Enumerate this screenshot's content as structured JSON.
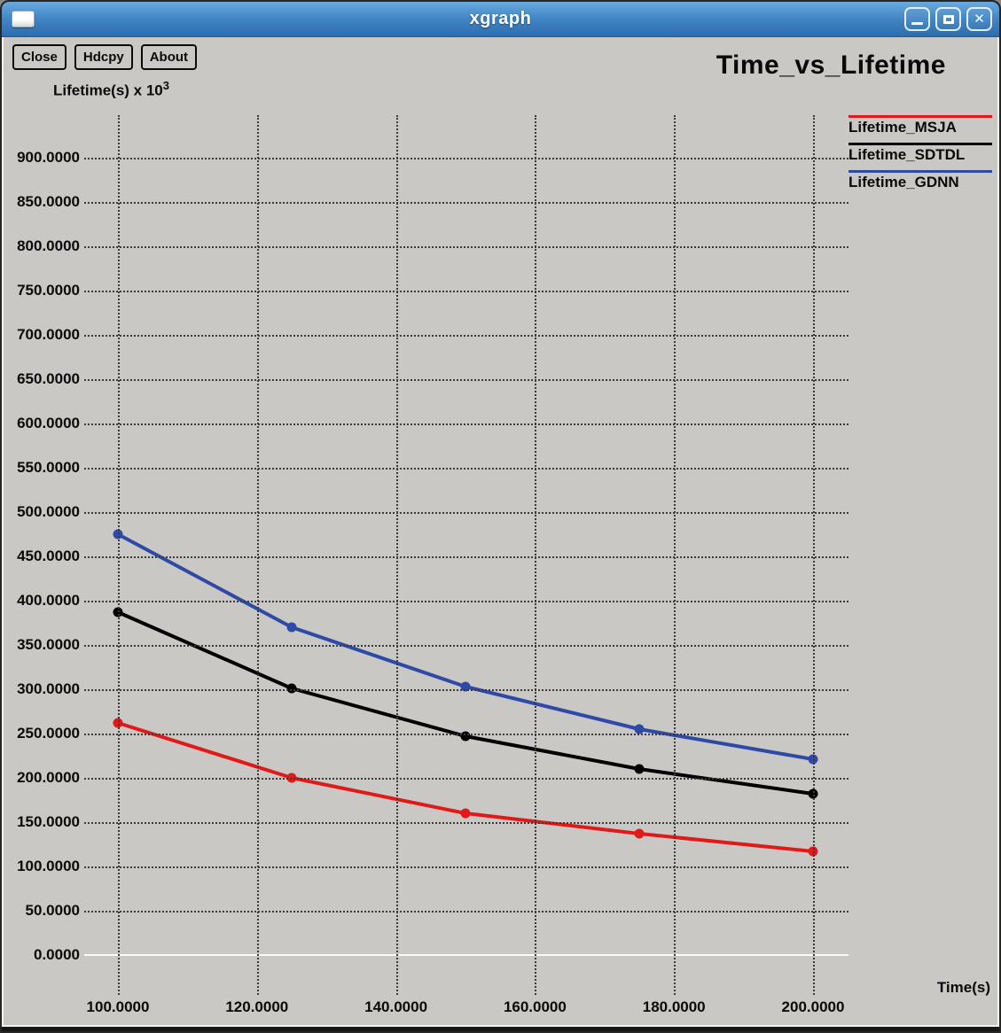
{
  "window": {
    "title": "xgraph",
    "icons": {
      "minimize": "minimize-icon",
      "maximize": "maximize-icon",
      "close": "✕"
    }
  },
  "toolbar": {
    "buttons": [
      "Close",
      "Hdcpy",
      "About"
    ]
  },
  "chart_data": {
    "type": "line",
    "title": "Time_vs_Lifetime",
    "xlabel": "Time(s)",
    "ylabel_prefix": "Lifetime(s) x 10",
    "ylabel_exponent": "3",
    "x": [
      100,
      125,
      150,
      175,
      200
    ],
    "series": [
      {
        "name": "Lifetime_MSJA",
        "color": "#e11919",
        "values": [
          262,
          200,
          160,
          137,
          117
        ]
      },
      {
        "name": "Lifetime_SDTDL",
        "color": "#000000",
        "values": [
          387,
          301,
          247,
          210,
          182
        ]
      },
      {
        "name": "Lifetime_GDNN",
        "color": "#2f49a6",
        "values": [
          475,
          370,
          303,
          255,
          221
        ]
      }
    ],
    "x_tick_values": [
      100,
      120,
      140,
      160,
      180,
      200
    ],
    "x_tick_labels": [
      "100.0000",
      "120.0000",
      "140.0000",
      "160.0000",
      "180.0000",
      "200.0000"
    ],
    "y_tick_values": [
      0,
      50,
      100,
      150,
      200,
      250,
      300,
      350,
      400,
      450,
      500,
      550,
      600,
      650,
      700,
      750,
      800,
      850,
      900
    ],
    "y_tick_labels": [
      "0.0000",
      "50.0000",
      "100.0000",
      "150.0000",
      "200.0000",
      "250.0000",
      "300.0000",
      "350.0000",
      "400.0000",
      "450.0000",
      "500.0000",
      "550.0000",
      "600.0000",
      "650.0000",
      "700.0000",
      "750.0000",
      "800.0000",
      "850.0000",
      "900.0000"
    ],
    "xlim": [
      100,
      200
    ],
    "ylim": [
      0,
      900
    ],
    "grid": true,
    "zero_line_color": "#fbfbf4",
    "background_color": "#c9c8c4",
    "legend_position": "top-right"
  }
}
